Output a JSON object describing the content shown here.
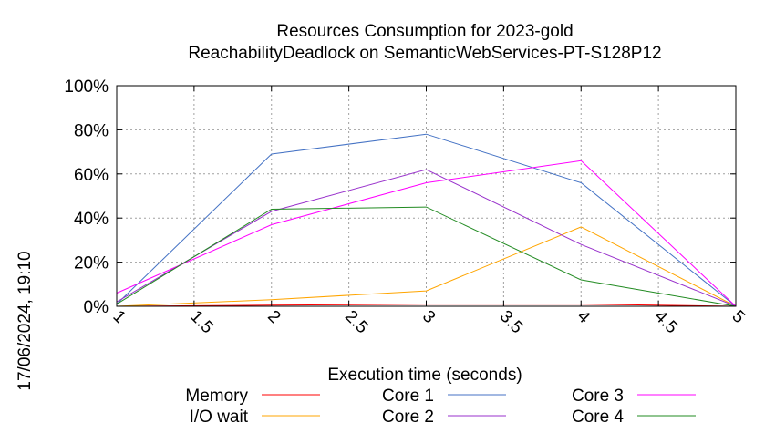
{
  "chart_data": {
    "type": "line",
    "title": "Resources Consumption for 2023-gold",
    "subtitle": "ReachabilityDeadlock on SemanticWebServices-PT-S128P12",
    "xlabel": "Execution time (seconds)",
    "side_label": "17/06/2024, 19:10",
    "xlim": [
      1,
      5
    ],
    "ylim": [
      0,
      100
    ],
    "x_ticks": [
      "1",
      "1.5",
      "2",
      "2.5",
      "3",
      "3.5",
      "4",
      "4.5",
      "5"
    ],
    "y_ticks": [
      "0%",
      "20%",
      "40%",
      "60%",
      "80%",
      "100%"
    ],
    "grid": true,
    "legend_position": "bottom",
    "x": [
      1,
      2,
      3,
      4,
      5
    ],
    "series": [
      {
        "name": "Memory",
        "color": "#ff0000",
        "values": [
          0,
          0.5,
          1,
          1,
          0
        ]
      },
      {
        "name": "I/O wait",
        "color": "#ffa500",
        "values": [
          0,
          3,
          7,
          36,
          0
        ]
      },
      {
        "name": "Core 1",
        "color": "#4472c4",
        "values": [
          1,
          69,
          78,
          56,
          0
        ]
      },
      {
        "name": "Core 2",
        "color": "#9932cc",
        "values": [
          2,
          43,
          62,
          28,
          0
        ]
      },
      {
        "name": "Core 3",
        "color": "#ff00ff",
        "values": [
          6,
          37,
          56,
          66,
          0
        ]
      },
      {
        "name": "Core 4",
        "color": "#228b22",
        "values": [
          1,
          44,
          45,
          12,
          0
        ]
      }
    ]
  }
}
